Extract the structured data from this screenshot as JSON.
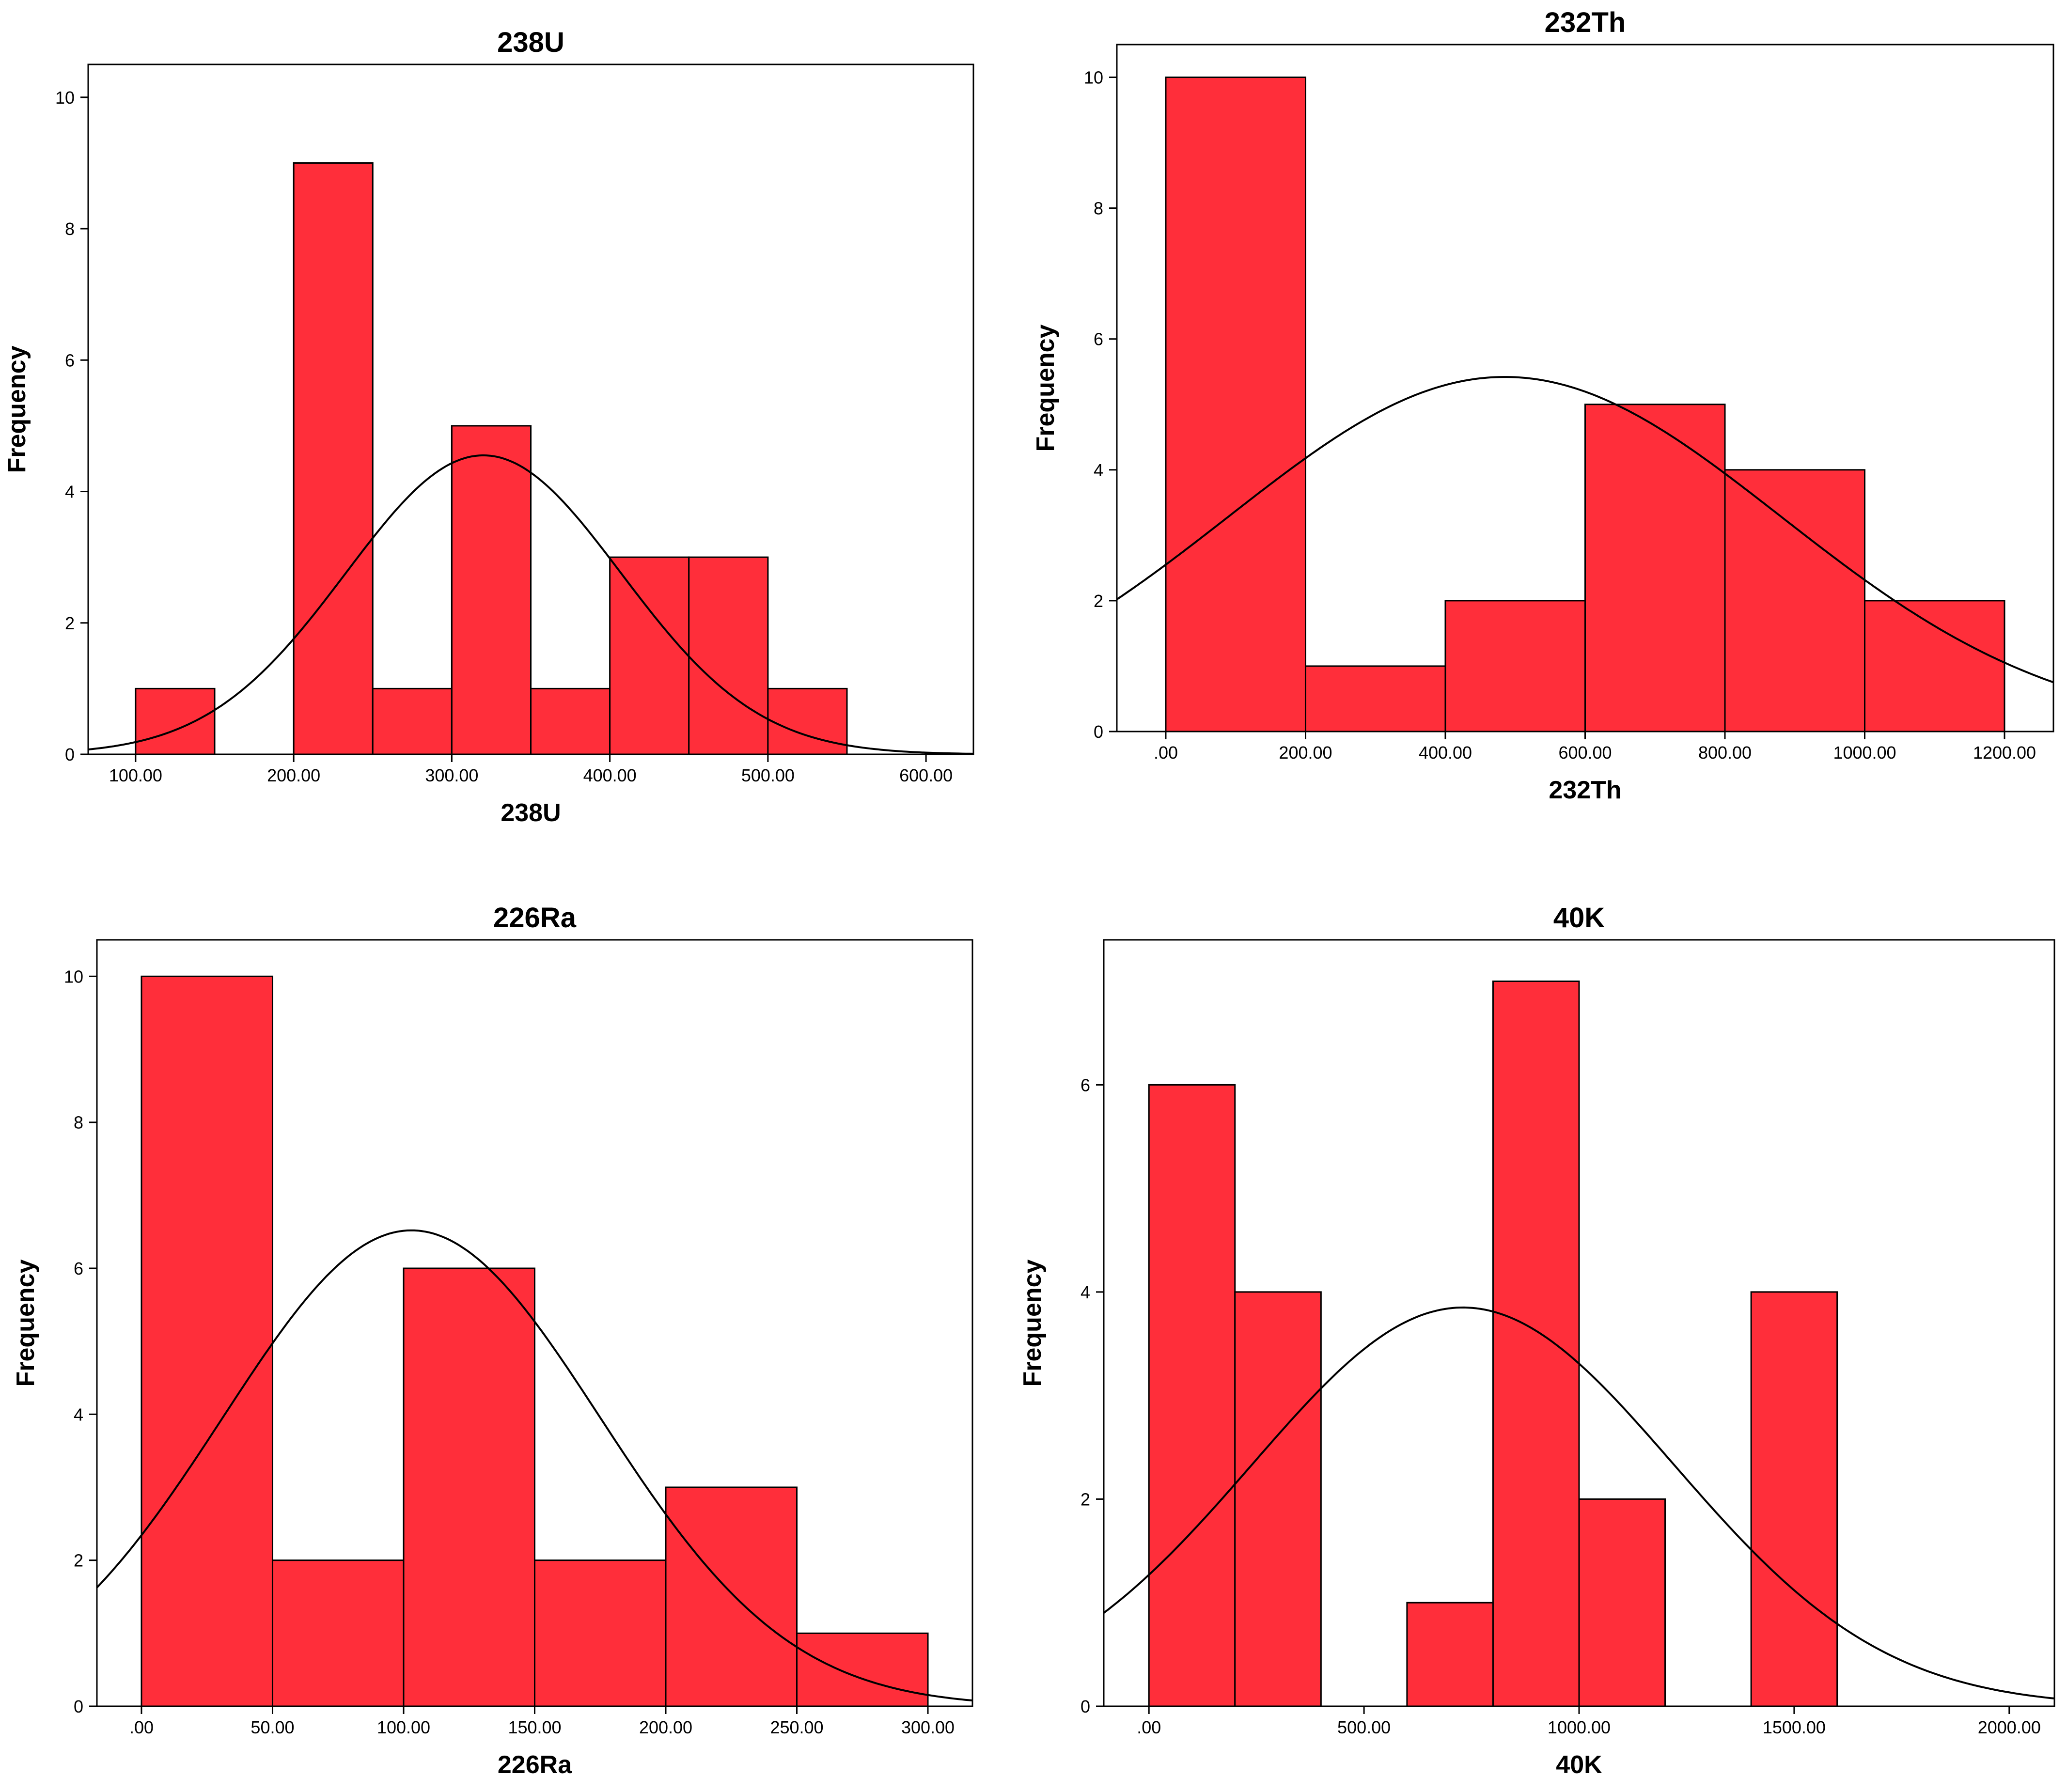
{
  "chart_data": [
    {
      "type": "bar",
      "subtype": "histogram",
      "title": "238U",
      "xlabel": "238U",
      "ylabel": "Frequency",
      "xlim": [
        70,
        630
      ],
      "ylim": [
        0,
        10.5
      ],
      "xticks": [
        100,
        200,
        300,
        400,
        500,
        600
      ],
      "xtick_labels": [
        "100.00",
        "200.00",
        "300.00",
        "400.00",
        "500.00",
        "600.00"
      ],
      "yticks": [
        0,
        2,
        4,
        6,
        8,
        10
      ],
      "ytick_labels": [
        "0",
        "2",
        "4",
        "6",
        "8",
        "10"
      ],
      "bins": [
        {
          "start": 100,
          "end": 150,
          "count": 1
        },
        {
          "start": 200,
          "end": 250,
          "count": 9
        },
        {
          "start": 250,
          "end": 300,
          "count": 1
        },
        {
          "start": 300,
          "end": 350,
          "count": 5
        },
        {
          "start": 350,
          "end": 400,
          "count": 1
        },
        {
          "start": 400,
          "end": 450,
          "count": 3
        },
        {
          "start": 450,
          "end": 500,
          "count": 3
        },
        {
          "start": 500,
          "end": 550,
          "count": 1
        }
      ],
      "normal_curve": {
        "mean": 320,
        "std": 87,
        "peak": 4.55
      },
      "bar_color": "#ff2e3a",
      "grid": false
    },
    {
      "type": "bar",
      "subtype": "histogram",
      "title": "232Th",
      "xlabel": "232Th",
      "ylabel": "Frequency",
      "xlim": [
        -70,
        1270
      ],
      "ylim": [
        0,
        10.5
      ],
      "xticks": [
        0,
        200,
        400,
        600,
        800,
        1000,
        1200
      ],
      "xtick_labels": [
        ".00",
        "200.00",
        "400.00",
        "600.00",
        "800.00",
        "1000.00",
        "1200.00"
      ],
      "yticks": [
        0,
        2,
        4,
        6,
        8,
        10
      ],
      "ytick_labels": [
        "0",
        "2",
        "4",
        "6",
        "8",
        "10"
      ],
      "bins": [
        {
          "start": 0,
          "end": 200,
          "count": 10
        },
        {
          "start": 200,
          "end": 400,
          "count": 1
        },
        {
          "start": 400,
          "end": 600,
          "count": 2
        },
        {
          "start": 600,
          "end": 800,
          "count": 5
        },
        {
          "start": 800,
          "end": 1000,
          "count": 4
        },
        {
          "start": 1000,
          "end": 1200,
          "count": 2
        }
      ],
      "normal_curve": {
        "mean": 485,
        "std": 395,
        "peak": 5.42
      },
      "bar_color": "#ff2e3a",
      "grid": false
    },
    {
      "type": "bar",
      "subtype": "histogram",
      "title": "226Ra",
      "xlabel": "226Ra",
      "ylabel": "Frequency",
      "xlim": [
        -17,
        317
      ],
      "ylim": [
        0,
        10.5
      ],
      "xticks": [
        0,
        50,
        100,
        150,
        200,
        250,
        300
      ],
      "xtick_labels": [
        ".00",
        "50.00",
        "100.00",
        "150.00",
        "200.00",
        "250.00",
        "300.00"
      ],
      "yticks": [
        0,
        2,
        4,
        6,
        8,
        10
      ],
      "ytick_labels": [
        "0",
        "2",
        "4",
        "6",
        "8",
        "10"
      ],
      "bins": [
        {
          "start": 0,
          "end": 50,
          "count": 10
        },
        {
          "start": 50,
          "end": 100,
          "count": 2
        },
        {
          "start": 100,
          "end": 150,
          "count": 6
        },
        {
          "start": 150,
          "end": 200,
          "count": 2
        },
        {
          "start": 200,
          "end": 250,
          "count": 3
        },
        {
          "start": 250,
          "end": 300,
          "count": 1
        }
      ],
      "normal_curve": {
        "mean": 103,
        "std": 72,
        "peak": 6.52
      },
      "bar_color": "#ff2e3a",
      "grid": false
    },
    {
      "type": "bar",
      "subtype": "histogram",
      "title": "40K",
      "xlabel": "40K",
      "ylabel": "Frequency",
      "xlim": [
        -105,
        2105
      ],
      "ylim": [
        0,
        7.4
      ],
      "xticks": [
        0,
        500,
        1000,
        1500,
        2000
      ],
      "xtick_labels": [
        ".00",
        "500.00",
        "1000.00",
        "1500.00",
        "2000.00"
      ],
      "yticks": [
        0,
        2,
        4,
        6
      ],
      "ytick_labels": [
        "0",
        "2",
        "4",
        "6"
      ],
      "bins": [
        {
          "start": 0,
          "end": 200,
          "count": 6
        },
        {
          "start": 200,
          "end": 400,
          "count": 4
        },
        {
          "start": 600,
          "end": 800,
          "count": 1
        },
        {
          "start": 800,
          "end": 1000,
          "count": 7
        },
        {
          "start": 1000,
          "end": 1200,
          "count": 2
        },
        {
          "start": 1400,
          "end": 1600,
          "count": 4
        }
      ],
      "normal_curve": {
        "mean": 730,
        "std": 490,
        "peak": 3.85
      },
      "bar_color": "#ff2e3a",
      "grid": false
    }
  ]
}
